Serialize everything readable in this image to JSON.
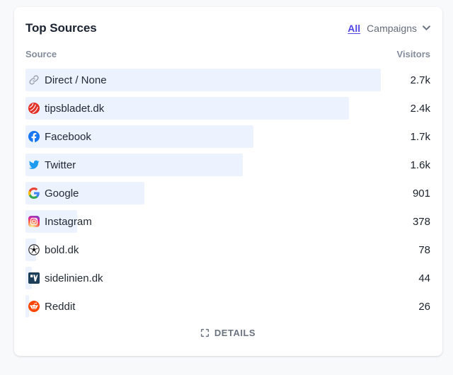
{
  "card": {
    "title": "Top Sources",
    "filters": {
      "all_label": "All",
      "campaigns_label": "Campaigns"
    },
    "columns": {
      "source": "Source",
      "visitors": "Visitors"
    },
    "rows": [
      {
        "label": "Direct / None",
        "value": "2.7k",
        "percent": 100,
        "icon": "link-icon"
      },
      {
        "label": "tipsbladet.dk",
        "value": "2.4k",
        "percent": 91,
        "icon": "tipsbladet-favicon"
      },
      {
        "label": "Facebook",
        "value": "1.7k",
        "percent": 64.2,
        "icon": "facebook-icon"
      },
      {
        "label": "Twitter",
        "value": "1.6k",
        "percent": 61.2,
        "icon": "twitter-icon"
      },
      {
        "label": "Google",
        "value": "901",
        "percent": 33.4,
        "icon": "google-icon"
      },
      {
        "label": "Instagram",
        "value": "378",
        "percent": 14.5,
        "icon": "instagram-icon"
      },
      {
        "label": "bold.dk",
        "value": "78",
        "percent": 2.9,
        "icon": "soccer-ball-favicon"
      },
      {
        "label": "sidelinien.dk",
        "value": "44",
        "percent": 1.7,
        "icon": "sidelinien-favicon"
      },
      {
        "label": "Reddit",
        "value": "26",
        "percent": 1.0,
        "icon": "reddit-icon"
      }
    ],
    "details_label": "DETAILS"
  },
  "colors": {
    "page_bg": "#f8f9fb",
    "card_bg": "#ffffff",
    "bar_fill": "#ecf3fe",
    "title_text": "#1b2230",
    "muted_text": "#848c9b",
    "link_accent": "#4f46e5",
    "facebook_blue": "#1877f2",
    "twitter_blue": "#1d9bf0",
    "reddit_orange": "#ff4500",
    "tipsbladet_red": "#e43127",
    "sidelinien_navy": "#1d3e59"
  },
  "chart_data": {
    "type": "bar",
    "orientation": "horizontal",
    "title": "Top Sources",
    "xlabel": "Visitors",
    "categories": [
      "Direct / None",
      "tipsbladet.dk",
      "Facebook",
      "Twitter",
      "Google",
      "Instagram",
      "bold.dk",
      "sidelinien.dk",
      "Reddit"
    ],
    "values_display": [
      "2.7k",
      "2.4k",
      "1.7k",
      "1.6k",
      "901",
      "378",
      "78",
      "44",
      "26"
    ],
    "values_approx": [
      2700,
      2400,
      1700,
      1600,
      901,
      378,
      78,
      44,
      26
    ],
    "max_value": 2700,
    "grid": false,
    "legend": false
  }
}
